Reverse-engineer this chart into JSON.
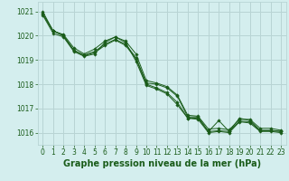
{
  "title": "Graphe pression niveau de la mer (hPa)",
  "bg_color": "#d4eeee",
  "grid_color": "#b8d4d4",
  "line_color": "#1a5c1a",
  "marker_color": "#1a5c1a",
  "xlim": [
    -0.5,
    23.5
  ],
  "ylim": [
    1015.5,
    1021.4
  ],
  "yticks": [
    1016,
    1017,
    1018,
    1019,
    1020,
    1021
  ],
  "xticks": [
    0,
    1,
    2,
    3,
    4,
    5,
    6,
    7,
    8,
    9,
    10,
    11,
    12,
    13,
    14,
    15,
    16,
    17,
    18,
    19,
    20,
    21,
    22,
    23
  ],
  "font_size_title": 7.0,
  "font_size_ticks": 5.5,
  "tick_label_color": "#1a5c1a",
  "series": [
    [
      1021.0,
      1020.2,
      1020.0,
      1019.4,
      1019.2,
      1019.35,
      1019.65,
      1019.85,
      1019.65,
      1019.1,
      1018.05,
      1018.0,
      1017.85,
      1017.5,
      1016.65,
      1016.65,
      1016.05,
      1016.5,
      1016.05,
      1016.6,
      1016.5,
      1016.1,
      1016.1,
      1016.05
    ],
    [
      1020.85,
      1020.1,
      1019.95,
      1019.35,
      1019.15,
      1019.25,
      1019.72,
      1019.95,
      1019.72,
      1018.95,
      1017.95,
      1017.8,
      1017.6,
      1017.15,
      1016.6,
      1016.55,
      1016.0,
      1016.05,
      1016.0,
      1016.45,
      1016.4,
      1016.05,
      1016.05,
      1016.0
    ],
    [
      1020.9,
      1020.2,
      1020.05,
      1019.5,
      1019.25,
      1019.45,
      1019.78,
      1019.95,
      1019.78,
      1019.25,
      1018.15,
      1018.05,
      1017.9,
      1017.55,
      1016.72,
      1016.68,
      1016.15,
      1016.18,
      1016.12,
      1016.55,
      1016.55,
      1016.18,
      1016.18,
      1016.1
    ],
    [
      1020.9,
      1020.2,
      1020.0,
      1019.4,
      1019.18,
      1019.3,
      1019.6,
      1019.82,
      1019.6,
      1019.05,
      1018.0,
      1017.85,
      1017.65,
      1017.25,
      1016.6,
      1016.6,
      1016.05,
      1016.08,
      1016.05,
      1016.48,
      1016.45,
      1016.08,
      1016.08,
      1016.05
    ]
  ]
}
